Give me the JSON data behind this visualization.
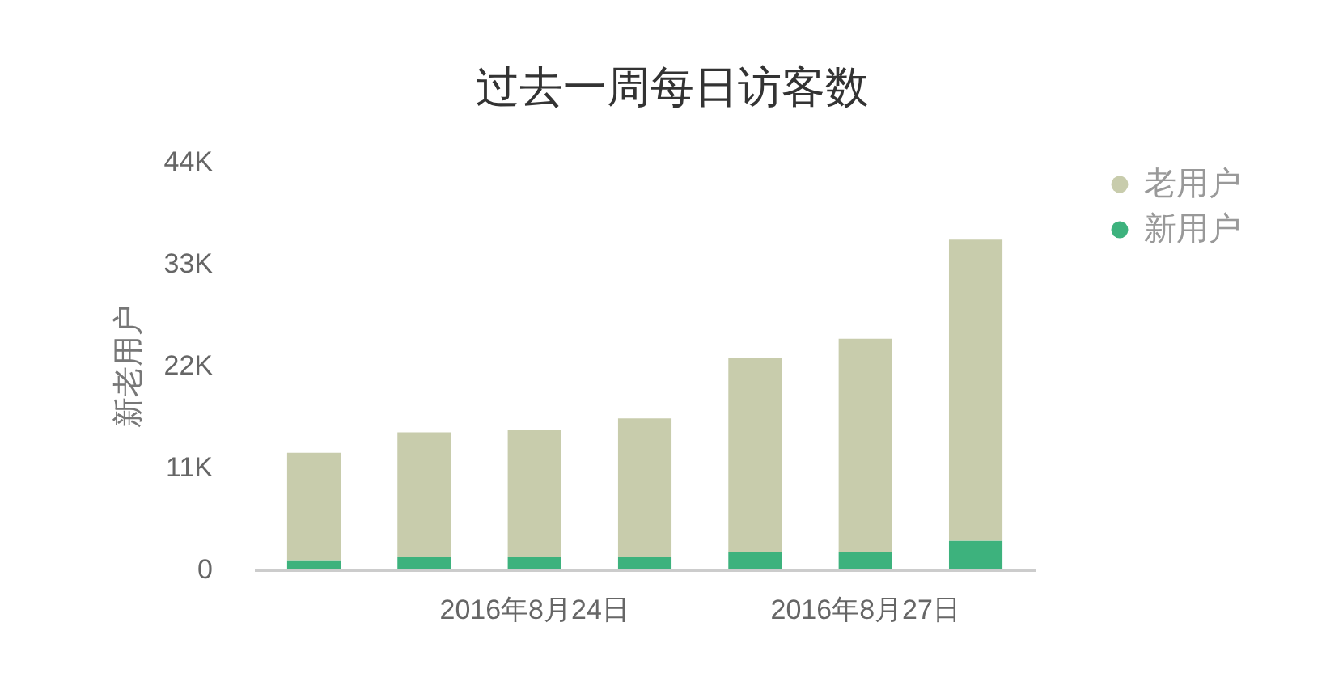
{
  "chart_data": {
    "type": "bar",
    "title": "过去一周每日访客数",
    "ylabel": "新老用户",
    "categories": [
      null,
      null,
      "2016年8月24日",
      null,
      null,
      "2016年8月27日",
      null
    ],
    "stacked": true,
    "series": [
      {
        "name": "新用户",
        "color": "#3db27d",
        "values": [
          1000,
          1300,
          1300,
          1300,
          1900,
          1900,
          3100
        ]
      },
      {
        "name": "老用户",
        "color": "#c8ccac",
        "values": [
          11600,
          13500,
          13800,
          15000,
          20900,
          23000,
          32500
        ]
      }
    ],
    "ylim": [
      0,
      44000
    ],
    "yticks": [
      0,
      {
        "value": 11000,
        "label": "11K"
      },
      {
        "value": 22000,
        "label": "22K"
      },
      {
        "value": 33000,
        "label": "33K"
      },
      {
        "value": 44000,
        "label": "44K"
      }
    ],
    "legend": "top right"
  }
}
